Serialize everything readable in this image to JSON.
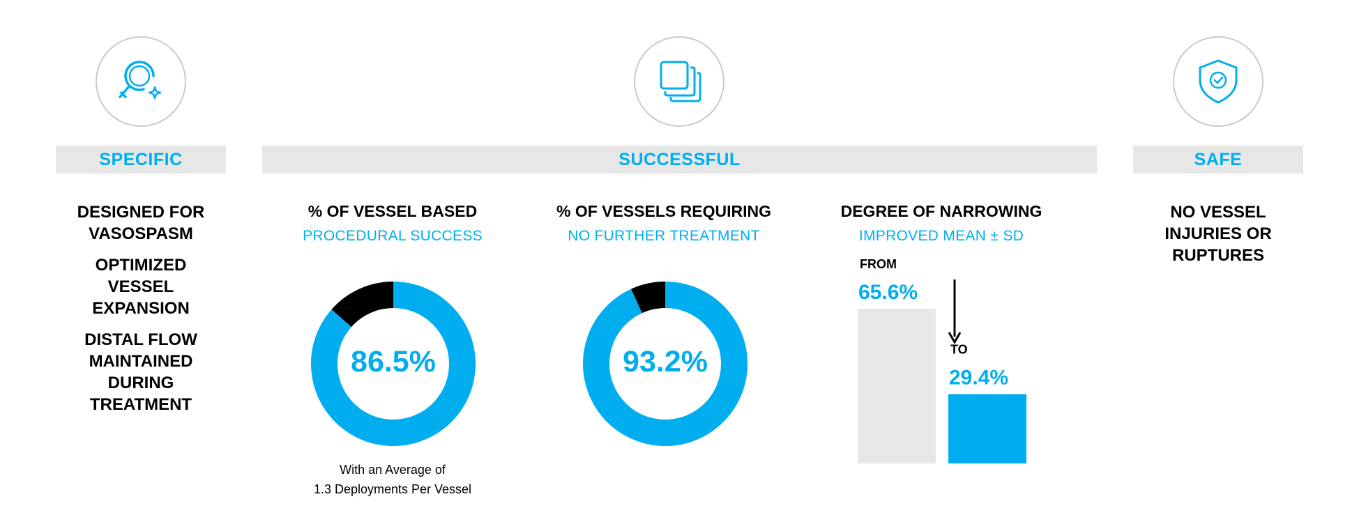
{
  "colors": {
    "accent": "#00aeef",
    "dark": "#000000",
    "grey": "#e7e7e7"
  },
  "sections": {
    "specific": {
      "label": "SPECIFIC",
      "icon": "search-sparkle-icon",
      "points": [
        "DESIGNED FOR\nVASOSPASM",
        "OPTIMIZED\nVESSEL\nEXPANSION",
        "DISTAL FLOW\nMAINTAINED\nDURING\nTREATMENT"
      ]
    },
    "successful": {
      "label": "SUCCESSFUL",
      "icon": "stacked-squares-icon"
    },
    "safe": {
      "label": "SAFE",
      "icon": "shield-check-icon",
      "text": "NO VESSEL\nINJURIES OR\nRUPTURES"
    }
  },
  "chart_data": [
    {
      "type": "pie",
      "title": "% OF VESSEL BASED",
      "subtitle": "PROCEDURAL SUCCESS",
      "value": 86.5,
      "label": "86.5%",
      "note": "With an Average of\n1.3 Deployments Per Vessel"
    },
    {
      "type": "pie",
      "title": "% OF VESSELS REQUIRING",
      "subtitle": "NO FURTHER TREATMENT",
      "value": 93.2,
      "label": "93.2%"
    },
    {
      "type": "bar",
      "title": "DEGREE OF NARROWING",
      "subtitle": "IMPROVED MEAN ± SD",
      "categories": [
        "FROM",
        "TO"
      ],
      "values": [
        65.6,
        29.4
      ],
      "labels": [
        "65.6%",
        "29.4%"
      ]
    }
  ]
}
